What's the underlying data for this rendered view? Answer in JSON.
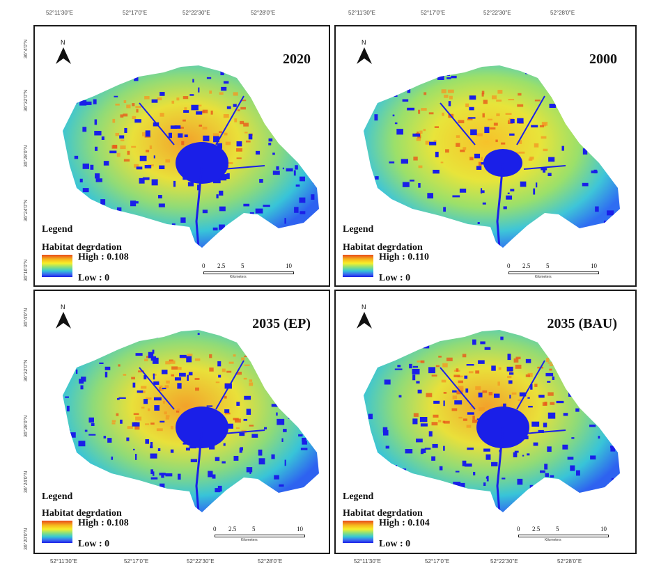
{
  "top_coords": [
    "52°11'30\"E",
    "52°17'0\"E",
    "52°22'30\"E",
    "52°28'0\"E"
  ],
  "bottom_coords": [
    "52°11'30\"E",
    "52°17'0\"E",
    "52°22'30\"E",
    "52°28'0\"E"
  ],
  "left_coords": [
    "36°4'0\"N",
    "36°32'0\"N",
    "36°28'0\"N",
    "36°24'0\"N",
    "36°16'0\"N",
    "36°4'0\"N",
    "36°32'0\"N",
    "36°28'0\"N",
    "36°24'0\"N",
    "36°20'0\"N"
  ],
  "north_label": "N",
  "panels": [
    {
      "id": "p2020",
      "year": "2020",
      "legend": "Legend",
      "sub": "Habitat degrdation",
      "high": "High : 0.108",
      "low": "Low : 0",
      "scale_ticks": [
        "0",
        "2.5",
        "5",
        "10"
      ],
      "scale_unit": "Kilometers"
    },
    {
      "id": "p2000",
      "year": "2000",
      "legend": "Legend",
      "sub": "Habitat degrdation",
      "high": "High : 0.110",
      "low": "Low : 0",
      "scale_ticks": [
        "0",
        "2.5",
        "5",
        "10"
      ],
      "scale_unit": "Kilometers"
    },
    {
      "id": "p2035ep",
      "year": "2035 (EP)",
      "legend": "Legend",
      "sub": "Habitat degrdation",
      "high": "High : 0.108",
      "low": "Low : 0",
      "scale_ticks": [
        "0",
        "2.5",
        "5",
        "10"
      ],
      "scale_unit": "Kilometers"
    },
    {
      "id": "p2035bau",
      "year": "2035 (BAU)",
      "legend": "Legend",
      "sub": "Habitat degrdation",
      "high": "High : 0.104",
      "low": "Low : 0",
      "scale_ticks": [
        "0",
        "2.5",
        "5",
        "10"
      ],
      "scale_unit": "Kilometers"
    }
  ],
  "colors": {
    "high": "#e84a1a",
    "mid": "#f7ef2a",
    "low": "#1a1fe8",
    "coast": "#35c7d6",
    "frame": "#1a1a1a"
  }
}
